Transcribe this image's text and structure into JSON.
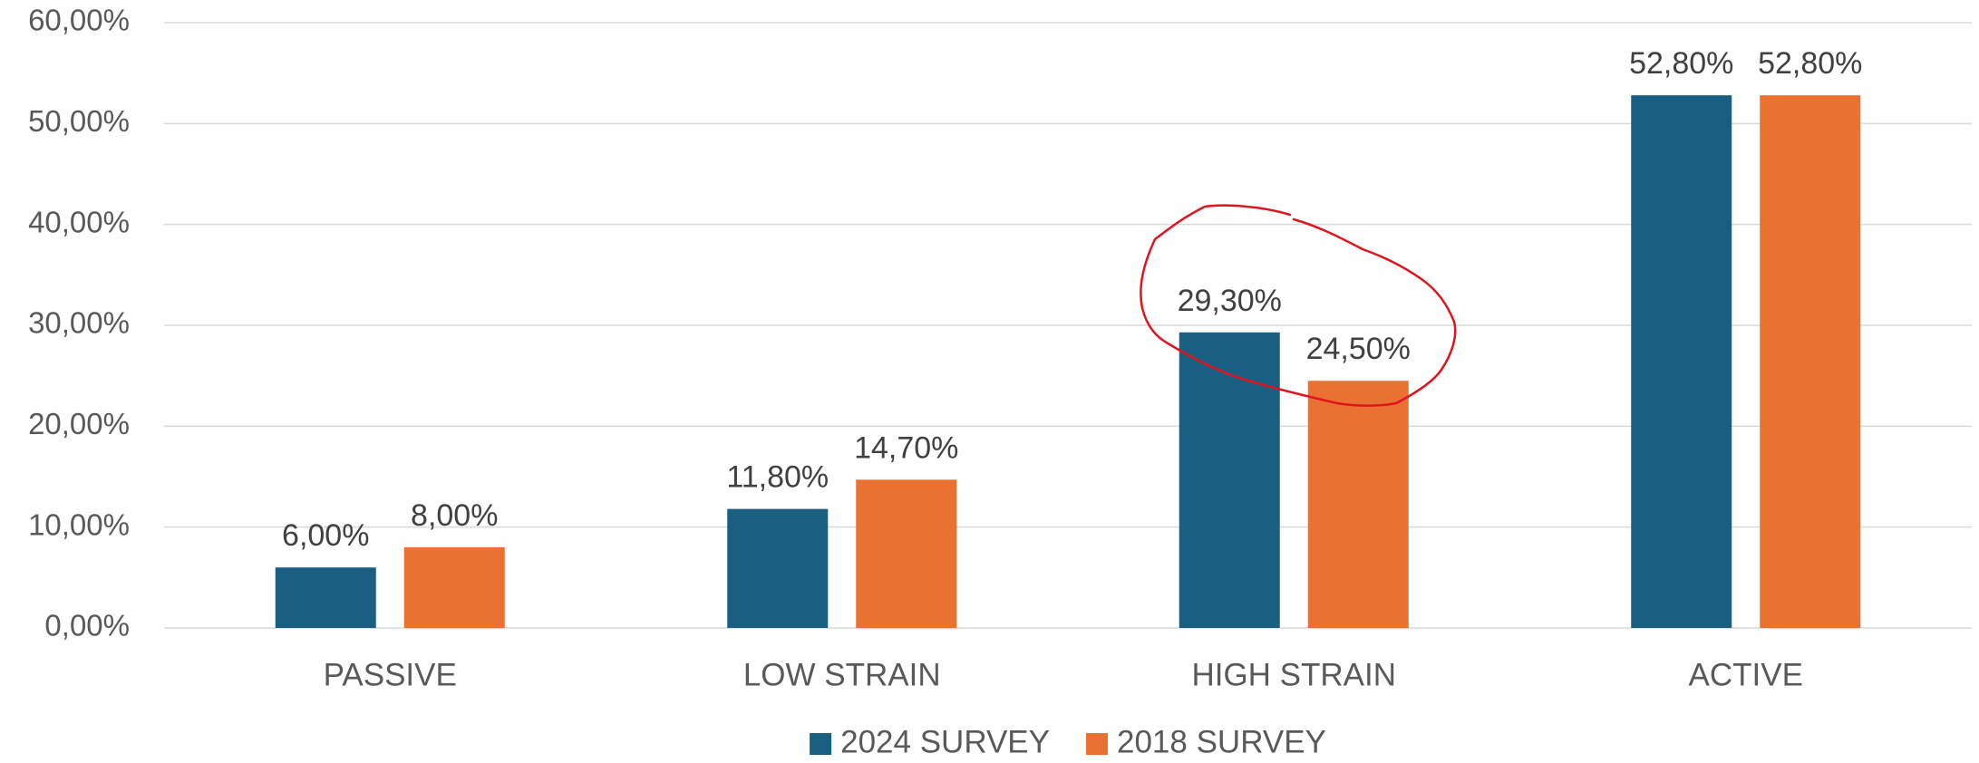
{
  "chart_data": {
    "type": "bar",
    "categories": [
      "PASSIVE",
      "LOW STRAIN",
      "HIGH STRAIN",
      "ACTIVE"
    ],
    "series": [
      {
        "name": "2024 SURVEY",
        "color": "#185f81",
        "values": [
          6,
          11.8,
          29.3,
          52.8
        ],
        "value_labels": [
          "6,00%",
          "11,80%",
          "29,30%",
          "52,80%"
        ]
      },
      {
        "name": "2018 SURVEY",
        "color": "#e97132",
        "values": [
          8,
          14.7,
          24.5,
          52.8
        ],
        "value_labels": [
          "8,00%",
          "14,70%",
          "24,50%",
          "52,80%"
        ]
      }
    ],
    "ylim": [
      0,
      60
    ],
    "yticks": [
      {
        "value": 0,
        "label": "0,00%"
      },
      {
        "value": 10,
        "label": "10,00%"
      },
      {
        "value": 20,
        "label": "20,00%"
      },
      {
        "value": 30,
        "label": "30,00%"
      },
      {
        "value": 40,
        "label": "40,00%"
      },
      {
        "value": 50,
        "label": "50,00%"
      },
      {
        "value": 60,
        "label": "60,00%"
      }
    ],
    "grid": true,
    "legend": "bottom"
  }
}
